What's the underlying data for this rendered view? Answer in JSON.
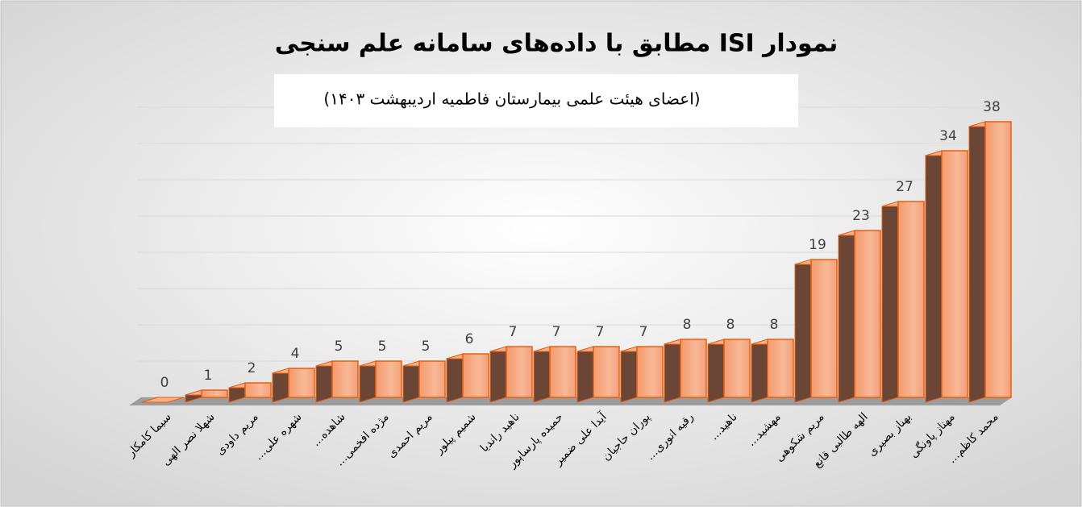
{
  "chart_data": {
    "type": "bar3d",
    "title": "نمودار ISI مطابق با داده‌های سامانه علم سنجی",
    "subtitle": "(اعضای هیئت علمی بیمارستان فاطمیه اردیبهشت ۱۴۰۳)",
    "categories": [
      "سیما کامکار",
      "شهلا نصر الهی",
      "مریم داودی",
      "شهره علی...",
      "شاهده...",
      "مژده افخمی...",
      "مریم احمدی",
      "شمیم پیلور",
      "ناهید راندیا",
      "حمیده پارساپور",
      "آیدا علی ضمیر",
      "پوران حاجیان",
      "رقیه انوری...",
      "ناهید...",
      "مهشید...",
      "مریم شکوهی",
      "الهه طالبی قانع",
      "بهناز بصیری",
      "مهناز پاونگی",
      "محمد کاظم..."
    ],
    "values": [
      0,
      1,
      2,
      4,
      5,
      5,
      5,
      6,
      7,
      7,
      7,
      7,
      8,
      8,
      8,
      19,
      23,
      27,
      34,
      38
    ],
    "color": "#f6a57c",
    "ylim": [
      0,
      40
    ],
    "yticks": [
      0,
      5,
      10,
      15,
      20,
      25,
      30,
      35,
      40
    ],
    "grid": true
  }
}
